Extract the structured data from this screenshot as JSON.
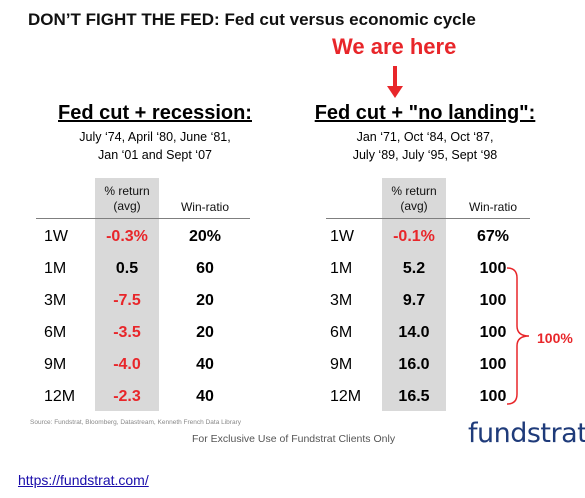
{
  "title": {
    "main": "DON’T FIGHT THE FED:",
    "sub": "Fed cut versus economic cycle"
  },
  "callout": {
    "text": "We are here",
    "arrow_icon": "arrow-down-icon",
    "color": "#e8262a"
  },
  "left_panel": {
    "heading": "Fed cut + recession:",
    "dates_line1": "July ‘74, April ‘80, June ‘81,",
    "dates_line2": "Jan ‘01 and Sept ‘07",
    "col_return_line1": "% return",
    "col_return_line2": "(avg)",
    "col_win": "Win-ratio",
    "rows": [
      {
        "period": "1W",
        "return": "-0.3%",
        "win": "20%"
      },
      {
        "period": "1M",
        "return": "0.5",
        "win": "60"
      },
      {
        "period": "3M",
        "return": "-7.5",
        "win": "20"
      },
      {
        "period": "6M",
        "return": "-3.5",
        "win": "20"
      },
      {
        "period": "9M",
        "return": "-4.0",
        "win": "40"
      },
      {
        "period": "12M",
        "return": "-2.3",
        "win": "40"
      }
    ]
  },
  "right_panel": {
    "heading": "Fed cut + \"no landing\":",
    "dates_line1": "Jan ‘71, Oct ‘84, Oct ‘87,",
    "dates_line2": "July ‘89, July ‘95, Sept ‘98",
    "col_return_line1": "% return",
    "col_return_line2": "(avg)",
    "col_win": "Win-ratio",
    "rows": [
      {
        "period": "1W",
        "return": "-0.1%",
        "win": "67%"
      },
      {
        "period": "1M",
        "return": "5.2",
        "win": "100"
      },
      {
        "period": "3M",
        "return": "9.7",
        "win": "100"
      },
      {
        "period": "6M",
        "return": "14.0",
        "win": "100"
      },
      {
        "period": "9M",
        "return": "16.0",
        "win": "100"
      },
      {
        "period": "12M",
        "return": "16.5",
        "win": "100"
      }
    ],
    "brace_label": "100%"
  },
  "footer": {
    "source": "Source: Fundstrat, Bloomberg, Datastream, Kenneth French Data Library",
    "exclusive": "For Exclusive Use of Fundstrat Clients Only",
    "logo": "fundstrat",
    "link": "https://fundstrat.com/"
  },
  "colors": {
    "negative": "#e8262a",
    "shade": "#d9d9d9",
    "logo": "#1f3b7a"
  }
}
